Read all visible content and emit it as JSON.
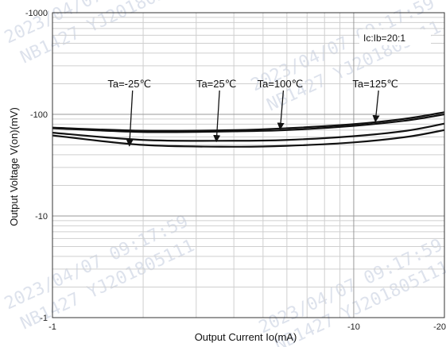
{
  "chart_data": {
    "type": "line",
    "xlabel": "Output Current Io(mA)",
    "ylabel": "Output Voltage V(on)(mV)",
    "x_scale": "log",
    "y_scale": "log",
    "xlim": [
      1,
      20
    ],
    "ylim": [
      1,
      1000
    ],
    "x_ticks": [
      {
        "value": 1,
        "label": "-1"
      },
      {
        "value": 10,
        "label": "-10"
      },
      {
        "value": 20,
        "label": "-20"
      }
    ],
    "y_ticks": [
      {
        "value": 1000,
        "label": "-1000"
      },
      {
        "value": 100,
        "label": "-100"
      },
      {
        "value": 10,
        "label": "-10"
      },
      {
        "value": 1,
        "label": "-1"
      }
    ],
    "grid": true,
    "condition_note": "Ic:Ib=20:1",
    "series": [
      {
        "name": "Ta=-25℃",
        "x": [
          1,
          2,
          4,
          6,
          10,
          15,
          20
        ],
        "y": [
          62,
          50,
          48,
          49,
          53,
          60,
          70
        ]
      },
      {
        "name": "Ta=25℃",
        "x": [
          1,
          2,
          4,
          6,
          10,
          15,
          20
        ],
        "y": [
          66,
          56,
          55,
          56,
          61,
          69,
          81
        ]
      },
      {
        "name": "Ta=100℃",
        "x": [
          1,
          2,
          4,
          6,
          10,
          15,
          20
        ],
        "y": [
          73,
          67,
          68,
          70,
          77,
          87,
          100
        ]
      },
      {
        "name": "Ta=125℃",
        "x": [
          1,
          2,
          4,
          6,
          10,
          15,
          20
        ],
        "y": [
          74,
          69,
          70,
          73,
          80,
          91,
          105
        ]
      }
    ],
    "annotations": [
      {
        "text": "Ta=-25℃",
        "series": "Ta=-25℃",
        "x": 1.8,
        "y": 48
      },
      {
        "text": "Ta=25℃",
        "series": "Ta=25℃",
        "x": 3.5,
        "y": 53
      },
      {
        "text": "Ta=100℃",
        "series": "Ta=100℃",
        "x": 5.7,
        "y": 70
      },
      {
        "text": "Ta=125℃",
        "series": "Ta=125℃",
        "x": 11.8,
        "y": 83
      }
    ]
  },
  "watermarks": [
    "2023/04/07 09:17:59",
    "NB1427 YJ201805111"
  ]
}
